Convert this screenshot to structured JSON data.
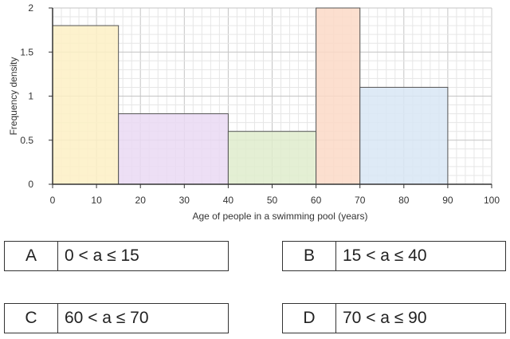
{
  "chart_data": {
    "type": "histogram",
    "xlabel": "Age of people in a swimming pool (years)",
    "ylabel": "Frequency density",
    "xlim": [
      0,
      100
    ],
    "ylim": [
      0,
      2
    ],
    "x_ticks": [
      "0",
      "10",
      "20",
      "30",
      "40",
      "50",
      "60",
      "70",
      "80",
      "90",
      "100"
    ],
    "y_ticks": [
      "0",
      "0.5",
      "1",
      "1.5",
      "2"
    ],
    "grid": true,
    "bars": [
      {
        "x_start": 0,
        "x_end": 15,
        "value": 1.8,
        "color": "#fdf0c4"
      },
      {
        "x_start": 15,
        "x_end": 40,
        "value": 0.8,
        "color": "#ead9f3"
      },
      {
        "x_start": 40,
        "x_end": 60,
        "value": 0.6,
        "color": "#dfeccd"
      },
      {
        "x_start": 60,
        "x_end": 70,
        "value": 2.0,
        "color": "#fbd9c7"
      },
      {
        "x_start": 70,
        "x_end": 90,
        "value": 1.1,
        "color": "#d8e6f5"
      }
    ]
  },
  "options": [
    {
      "letter": "A",
      "text": "0 < a ≤ 15"
    },
    {
      "letter": "B",
      "text": "15 < a ≤ 40"
    },
    {
      "letter": "C",
      "text": "60 < a ≤ 70"
    },
    {
      "letter": "D",
      "text": "70 < a ≤ 90"
    }
  ]
}
